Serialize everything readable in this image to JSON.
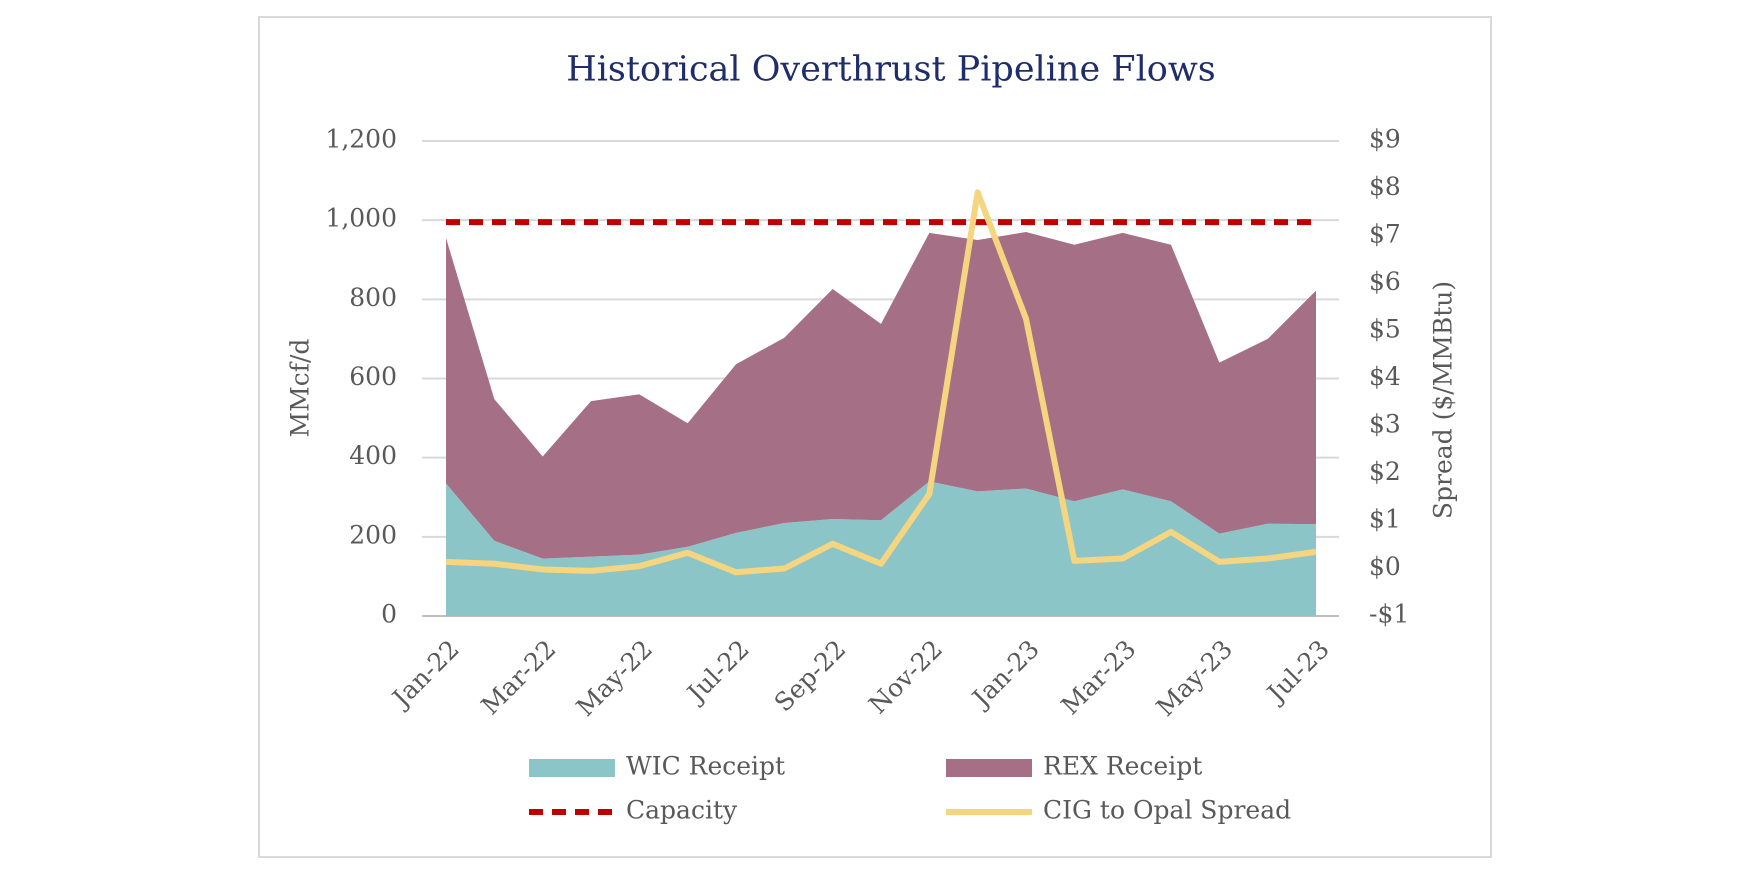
{
  "chart_data": {
    "type": "stacked-area-line",
    "title": "Historical Overthrust Pipeline Flows",
    "y_label": "MMcf/d",
    "y2_label": "Spread ($/MMBtu)",
    "categories": [
      "Jan-22",
      null,
      "Mar-22",
      null,
      "May-22",
      null,
      "Jul-22",
      null,
      "Sep-22",
      null,
      "Nov-22",
      null,
      "Jan-23",
      null,
      "Mar-23",
      null,
      "May-23",
      null,
      "Jul-23"
    ],
    "series": [
      {
        "name": "WIC Receipt",
        "type": "area",
        "color": "#8cc5c7",
        "values": [
          335,
          190,
          145,
          150,
          155,
          175,
          210,
          235,
          245,
          242,
          340,
          315,
          322,
          290,
          320,
          290,
          208,
          233,
          232
        ]
      },
      {
        "name": "REX Receipt",
        "type": "area",
        "color": "#a57086",
        "values": [
          620,
          358,
          258,
          393,
          405,
          312,
          426,
          468,
          581,
          496,
          628,
          635,
          648,
          648,
          648,
          648,
          432,
          467,
          590
        ]
      },
      {
        "name": "Capacity",
        "type": "line",
        "dashed": true,
        "color": "#c00000",
        "values": [
          995,
          995,
          995,
          995,
          995,
          995,
          995,
          995,
          995,
          995,
          995,
          995,
          995,
          995,
          995,
          995,
          995,
          995,
          995
        ]
      },
      {
        "name": "CIG to Opal Spread",
        "type": "line",
        "axis": "y2",
        "color": "#f5d580",
        "values": [
          0.14,
          0.1,
          -0.02,
          -0.05,
          0.05,
          0.33,
          -0.08,
          0.0,
          0.52,
          0.1,
          1.57,
          7.92,
          5.26,
          0.16,
          0.21,
          0.77,
          0.14,
          0.21,
          0.35
        ]
      }
    ],
    "ylim": [
      0,
      1200
    ],
    "yticks": [
      0,
      200,
      400,
      600,
      800,
      {
        "value": 1000,
        "label": "1,000"
      },
      {
        "value": 1200,
        "label": "1,200"
      }
    ],
    "y2lim": [
      -1,
      9
    ],
    "y2ticks": [
      {
        "value": -1,
        "label": "-$1"
      },
      {
        "value": 0,
        "label": "$0"
      },
      {
        "value": 1,
        "label": "$1"
      },
      {
        "value": 2,
        "label": "$2"
      },
      {
        "value": 3,
        "label": "$3"
      },
      {
        "value": 4,
        "label": "$4"
      },
      {
        "value": 5,
        "label": "$5"
      },
      {
        "value": 6,
        "label": "$6"
      },
      {
        "value": 7,
        "label": "$7"
      },
      {
        "value": 8,
        "label": "$8"
      },
      {
        "value": 9,
        "label": "$9"
      }
    ],
    "grid": true
  }
}
